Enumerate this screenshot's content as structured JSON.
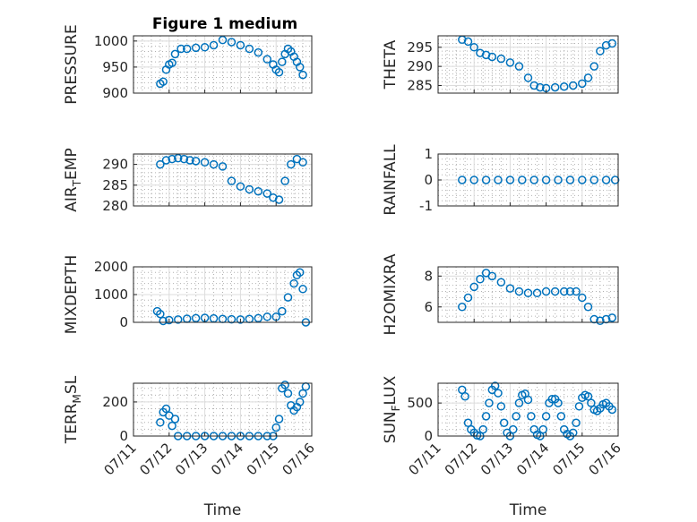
{
  "figure_title": "Figure 1 medium",
  "accent_color": "#0072BD",
  "x_tick_labels": [
    "07/11",
    "07/12",
    "07/13",
    "07/14",
    "07/15",
    "07/16"
  ],
  "x_label": "Time",
  "chart_data": [
    {
      "type": "scatter",
      "name": "pressure",
      "ylabel": "PRESSURE",
      "ylim": [
        900,
        1010
      ],
      "yticks": [
        900,
        950,
        1000
      ],
      "title": "Figure 1 medium",
      "xlabel": "",
      "grid": true,
      "x": [
        "07/11 18:00",
        "07/11 20:00",
        "07/11 22:00",
        "07/12 00:00",
        "07/12 02:00",
        "07/12 04:00",
        "07/12 08:00",
        "07/12 12:00",
        "07/12 18:00",
        "07/13 00:00",
        "07/13 06:00",
        "07/13 12:00",
        "07/13 18:00",
        "07/14 00:00",
        "07/14 06:00",
        "07/14 12:00",
        "07/14 18:00",
        "07/14 22:00",
        "07/15 00:00",
        "07/15 02:00",
        "07/15 04:00",
        "07/15 06:00",
        "07/15 08:00",
        "07/15 10:00",
        "07/15 12:00",
        "07/15 14:00",
        "07/15 16:00",
        "07/15 18:00"
      ],
      "y": [
        918,
        922,
        945,
        955,
        958,
        975,
        985,
        985,
        987,
        988,
        992,
        1002,
        998,
        992,
        985,
        978,
        965,
        955,
        945,
        940,
        960,
        975,
        985,
        980,
        970,
        960,
        950,
        935
      ]
    },
    {
      "type": "scatter",
      "name": "theta",
      "ylabel": "THETA",
      "ylim": [
        283,
        298
      ],
      "yticks": [
        285,
        290,
        295
      ],
      "title": "",
      "xlabel": "",
      "grid": true,
      "x": [
        "07/11 16:00",
        "07/11 20:00",
        "07/12 00:00",
        "07/12 04:00",
        "07/12 08:00",
        "07/12 12:00",
        "07/12 18:00",
        "07/13 00:00",
        "07/13 06:00",
        "07/13 12:00",
        "07/13 16:00",
        "07/13 20:00",
        "07/14 00:00",
        "07/14 06:00",
        "07/14 12:00",
        "07/14 18:00",
        "07/15 00:00",
        "07/15 04:00",
        "07/15 08:00",
        "07/15 12:00",
        "07/15 16:00",
        "07/15 20:00"
      ],
      "y": [
        297,
        296.5,
        295,
        293.5,
        293,
        292.5,
        292,
        291,
        290,
        287,
        285,
        284.5,
        284.3,
        284.5,
        284.7,
        285,
        285.5,
        287,
        290,
        294,
        295.5,
        296
      ]
    },
    {
      "type": "scatter",
      "name": "air_temp",
      "ylabel": "AIR_TEMP",
      "ylim": [
        280,
        292.5
      ],
      "yticks": [
        280,
        285,
        290
      ],
      "title": "",
      "xlabel": "",
      "grid": true,
      "x": [
        "07/11 18:00",
        "07/11 22:00",
        "07/12 02:00",
        "07/12 06:00",
        "07/12 10:00",
        "07/12 14:00",
        "07/12 18:00",
        "07/13 00:00",
        "07/13 06:00",
        "07/13 12:00",
        "07/13 18:00",
        "07/14 00:00",
        "07/14 06:00",
        "07/14 12:00",
        "07/14 18:00",
        "07/14 22:00",
        "07/15 02:00",
        "07/15 06:00",
        "07/15 10:00",
        "07/15 14:00",
        "07/15 18:00"
      ],
      "y": [
        290,
        291,
        291.3,
        291.5,
        291.3,
        291,
        290.8,
        290.5,
        290,
        289.5,
        286,
        284.7,
        284,
        283.5,
        283,
        282,
        281.5,
        286,
        290,
        291.3,
        290.5
      ]
    },
    {
      "type": "scatter",
      "name": "rainfall",
      "ylabel": "RAINFALL",
      "ylim": [
        -1,
        1
      ],
      "yticks": [
        -1,
        0,
        1
      ],
      "title": "",
      "xlabel": "",
      "grid": true,
      "x": [
        "07/11 16:00",
        "07/12 00:00",
        "07/12 08:00",
        "07/12 16:00",
        "07/13 00:00",
        "07/13 08:00",
        "07/13 16:00",
        "07/14 00:00",
        "07/14 08:00",
        "07/14 16:00",
        "07/15 00:00",
        "07/15 08:00",
        "07/15 16:00",
        "07/15 22:00"
      ],
      "y": [
        0,
        0,
        0,
        0,
        0,
        0,
        0,
        0,
        0,
        0,
        0,
        0,
        0,
        0
      ]
    },
    {
      "type": "scatter",
      "name": "mixdepth",
      "ylabel": "MIXDEPTH",
      "ylim": [
        0,
        2000
      ],
      "yticks": [
        0,
        1000,
        2000
      ],
      "title": "",
      "xlabel": "",
      "grid": true,
      "x": [
        "07/11 16:00",
        "07/11 18:00",
        "07/11 20:00",
        "07/12 00:00",
        "07/12 06:00",
        "07/12 12:00",
        "07/12 18:00",
        "07/13 00:00",
        "07/13 06:00",
        "07/13 12:00",
        "07/13 18:00",
        "07/14 00:00",
        "07/14 06:00",
        "07/14 12:00",
        "07/14 18:00",
        "07/15 00:00",
        "07/15 04:00",
        "07/15 08:00",
        "07/15 12:00",
        "07/15 14:00",
        "07/15 16:00",
        "07/15 18:00",
        "07/15 20:00"
      ],
      "y": [
        400,
        300,
        50,
        80,
        100,
        130,
        150,
        160,
        140,
        120,
        110,
        100,
        120,
        150,
        200,
        200,
        400,
        900,
        1400,
        1700,
        1800,
        1200,
        0
      ]
    },
    {
      "type": "scatter",
      "name": "h2omixra",
      "ylabel": "H2OMIXRA",
      "ylim": [
        5,
        8.6
      ],
      "yticks": [
        6,
        8
      ],
      "title": "",
      "xlabel": "",
      "grid": true,
      "x": [
        "07/11 16:00",
        "07/11 20:00",
        "07/12 00:00",
        "07/12 04:00",
        "07/12 08:00",
        "07/12 12:00",
        "07/12 18:00",
        "07/13 00:00",
        "07/13 06:00",
        "07/13 12:00",
        "07/13 18:00",
        "07/14 00:00",
        "07/14 06:00",
        "07/14 12:00",
        "07/14 16:00",
        "07/14 20:00",
        "07/15 00:00",
        "07/15 04:00",
        "07/15 08:00",
        "07/15 12:00",
        "07/15 16:00",
        "07/15 20:00"
      ],
      "y": [
        6,
        6.6,
        7.3,
        7.8,
        8.2,
        8,
        7.6,
        7.2,
        7,
        6.9,
        6.9,
        7,
        7,
        7,
        7,
        7,
        6.6,
        6,
        5.2,
        5.1,
        5.2,
        5.3
      ]
    },
    {
      "type": "scatter",
      "name": "terr_msl",
      "ylabel": "TERR_MSL",
      "ylim": [
        0,
        310
      ],
      "yticks": [
        0,
        200
      ],
      "title": "",
      "xlabel": "Time",
      "grid": true,
      "x": [
        "07/11 18:00",
        "07/11 20:00",
        "07/11 22:00",
        "07/12 00:00",
        "07/12 02:00",
        "07/12 04:00",
        "07/12 06:00",
        "07/12 12:00",
        "07/12 18:00",
        "07/13 00:00",
        "07/13 06:00",
        "07/13 12:00",
        "07/13 18:00",
        "07/14 00:00",
        "07/14 06:00",
        "07/14 12:00",
        "07/14 18:00",
        "07/14 22:00",
        "07/15 00:00",
        "07/15 02:00",
        "07/15 04:00",
        "07/15 06:00",
        "07/15 08:00",
        "07/15 10:00",
        "07/15 12:00",
        "07/15 14:00",
        "07/15 16:00",
        "07/15 18:00",
        "07/15 20:00"
      ],
      "y": [
        80,
        140,
        160,
        120,
        60,
        100,
        0,
        0,
        0,
        0,
        0,
        0,
        0,
        0,
        0,
        0,
        0,
        0,
        50,
        100,
        280,
        300,
        250,
        180,
        150,
        170,
        200,
        250,
        290
      ]
    },
    {
      "type": "scatter",
      "name": "sun_flux",
      "ylabel": "SUN_FLUX",
      "ylim": [
        0,
        800
      ],
      "yticks": [
        0,
        500
      ],
      "title": "",
      "xlabel": "Time",
      "grid": true,
      "x": [
        "07/11 16:00",
        "07/11 18:00",
        "07/11 20:00",
        "07/11 22:00",
        "07/12 00:00",
        "07/12 02:00",
        "07/12 04:00",
        "07/12 06:00",
        "07/12 08:00",
        "07/12 10:00",
        "07/12 12:00",
        "07/12 14:00",
        "07/12 16:00",
        "07/12 18:00",
        "07/12 20:00",
        "07/12 22:00",
        "07/13 00:00",
        "07/13 02:00",
        "07/13 04:00",
        "07/13 06:00",
        "07/13 08:00",
        "07/13 10:00",
        "07/13 12:00",
        "07/13 14:00",
        "07/13 16:00",
        "07/13 18:00",
        "07/13 20:00",
        "07/13 22:00",
        "07/14 00:00",
        "07/14 02:00",
        "07/14 04:00",
        "07/14 06:00",
        "07/14 08:00",
        "07/14 10:00",
        "07/14 12:00",
        "07/14 14:00",
        "07/14 16:00",
        "07/14 18:00",
        "07/14 20:00",
        "07/14 22:00",
        "07/15 00:00",
        "07/15 02:00",
        "07/15 04:00",
        "07/15 06:00",
        "07/15 08:00",
        "07/15 10:00",
        "07/15 12:00",
        "07/15 14:00",
        "07/15 16:00",
        "07/15 18:00",
        "07/15 20:00"
      ],
      "y": [
        700,
        600,
        200,
        100,
        50,
        10,
        0,
        100,
        300,
        500,
        700,
        760,
        650,
        450,
        200,
        50,
        0,
        100,
        300,
        500,
        620,
        640,
        550,
        300,
        100,
        20,
        0,
        100,
        300,
        500,
        560,
        560,
        500,
        300,
        100,
        30,
        0,
        50,
        200,
        450,
        580,
        620,
        600,
        500,
        400,
        380,
        420,
        480,
        500,
        450,
        400
      ]
    }
  ]
}
